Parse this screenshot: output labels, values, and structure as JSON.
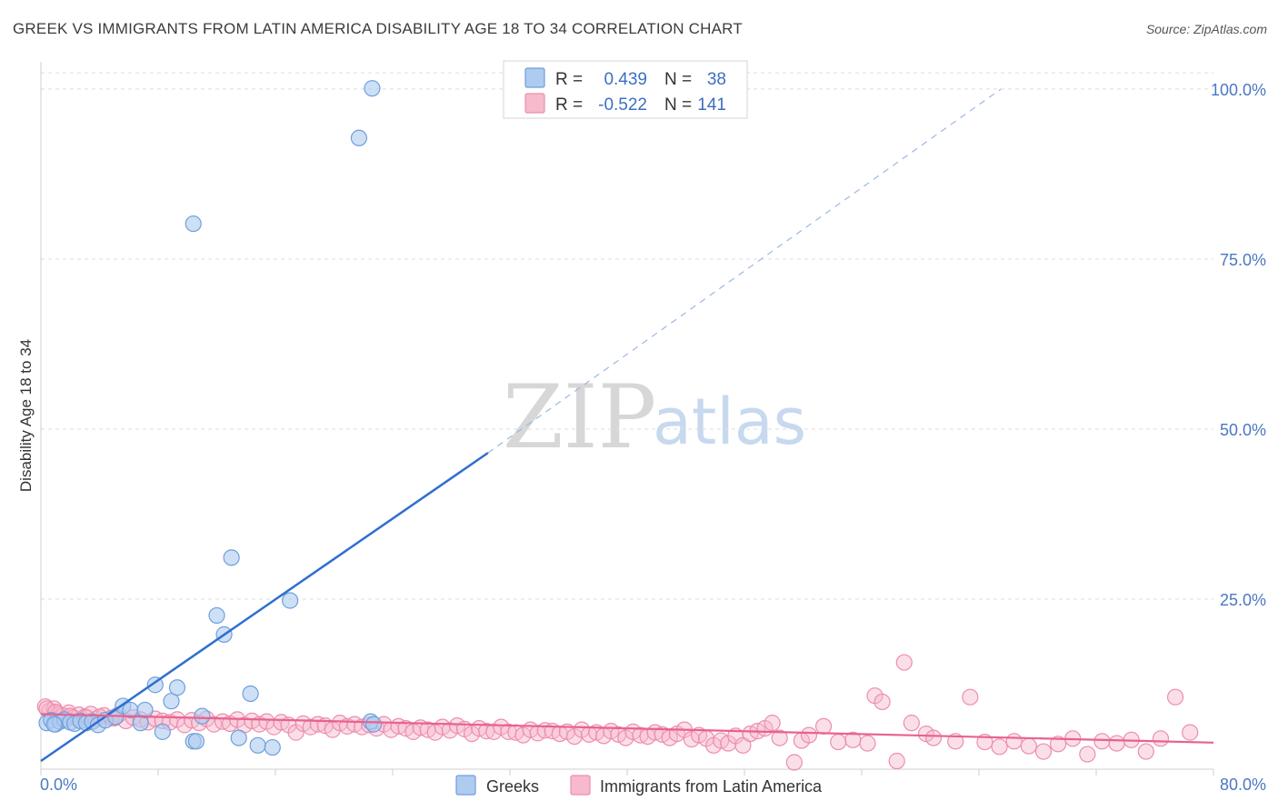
{
  "title": "GREEK VS IMMIGRANTS FROM LATIN AMERICA DISABILITY AGE 18 TO 34 CORRELATION CHART",
  "source": "Source: ZipAtlas.com",
  "watermark": {
    "zip": "ZIP",
    "atlas": "atlas"
  },
  "legend": {
    "r_label": "R =",
    "n_label": "N =",
    "greeks": {
      "r": "0.439",
      "n": "38"
    },
    "latin": {
      "r": "-0.522",
      "n": "141"
    }
  },
  "bottom_legend": {
    "greeks": "Greeks",
    "latin": "Immigrants from Latin America"
  },
  "colors": {
    "greek_fill": "#aecbf0",
    "greek_stroke": "#6f9fdc",
    "greek_line": "#2f6fd0",
    "latin_fill": "#f7b9cc",
    "latin_stroke": "#ec8eae",
    "latin_line": "#e8628e",
    "grid": "#dcdcdc",
    "axis_text": "#4a78c2"
  },
  "chart_data": {
    "type": "scatter",
    "title": "GREEK VS IMMIGRANTS FROM LATIN AMERICA DISABILITY AGE 18 TO 34 CORRELATION CHART",
    "xlabel": "",
    "ylabel": "Disability Age 18 to 34",
    "xlim": [
      0,
      80
    ],
    "ylim": [
      0,
      104
    ],
    "x_tick_labels": [
      "0.0%",
      "80.0%"
    ],
    "y_ticks": [
      25,
      50,
      75,
      100
    ],
    "y_tick_labels": [
      "25.0%",
      "50.0%",
      "75.0%",
      "100.0%"
    ],
    "grid": true,
    "series": [
      {
        "name": "Greeks",
        "r": 0.439,
        "n": 38,
        "trend": {
          "x0": 0,
          "y0": 1.2,
          "x1": 30.5,
          "y1": 46.5,
          "dash_to_x": 65.5,
          "dash_to_y": 100
        },
        "points": [
          [
            0.4,
            6.8
          ],
          [
            0.7,
            7.2
          ],
          [
            1.0,
            6.6
          ],
          [
            1.3,
            7.0
          ],
          [
            1.6,
            7.3
          ],
          [
            2.0,
            6.9
          ],
          [
            2.3,
            6.7
          ],
          [
            2.7,
            7.1
          ],
          [
            3.1,
            6.8
          ],
          [
            3.5,
            7.0
          ],
          [
            3.9,
            6.5
          ],
          [
            4.4,
            7.2
          ],
          [
            5.1,
            7.7
          ],
          [
            5.6,
            9.3
          ],
          [
            6.1,
            8.7
          ],
          [
            6.8,
            6.8
          ],
          [
            7.1,
            8.7
          ],
          [
            7.8,
            12.4
          ],
          [
            8.3,
            5.5
          ],
          [
            8.9,
            10.0
          ],
          [
            9.3,
            12.0
          ],
          [
            10.4,
            4.1
          ],
          [
            10.6,
            4.1
          ],
          [
            11.0,
            7.8
          ],
          [
            12.0,
            22.6
          ],
          [
            12.5,
            19.8
          ],
          [
            13.0,
            31.1
          ],
          [
            13.5,
            4.6
          ],
          [
            14.3,
            11.1
          ],
          [
            14.8,
            3.5
          ],
          [
            15.8,
            3.2
          ],
          [
            17.0,
            24.8
          ],
          [
            22.5,
            7.0
          ],
          [
            22.7,
            6.6
          ],
          [
            21.7,
            92.8
          ],
          [
            22.6,
            100.1
          ],
          [
            10.4,
            80.2
          ],
          [
            0.9,
            6.6
          ]
        ]
      },
      {
        "name": "Immigrants from Latin America",
        "r": -0.522,
        "n": 141,
        "trend": {
          "x0": 0,
          "y0": 8.1,
          "x1": 80,
          "y1": 3.9
        },
        "points": [
          [
            0.3,
            9.2
          ],
          [
            0.6,
            8.6
          ],
          [
            0.9,
            8.9
          ],
          [
            1.2,
            8.1
          ],
          [
            1.5,
            7.9
          ],
          [
            1.9,
            8.3
          ],
          [
            2.2,
            7.6
          ],
          [
            2.6,
            8.0
          ],
          [
            3.0,
            7.7
          ],
          [
            3.4,
            8.1
          ],
          [
            3.8,
            7.4
          ],
          [
            4.3,
            7.9
          ],
          [
            4.8,
            7.5
          ],
          [
            5.3,
            8.0
          ],
          [
            5.8,
            7.1
          ],
          [
            6.3,
            7.6
          ],
          [
            6.8,
            7.3
          ],
          [
            7.3,
            6.9
          ],
          [
            7.8,
            7.4
          ],
          [
            8.3,
            7.1
          ],
          [
            8.8,
            6.9
          ],
          [
            9.3,
            7.3
          ],
          [
            9.8,
            6.5
          ],
          [
            10.3,
            7.2
          ],
          [
            10.8,
            6.8
          ],
          [
            11.3,
            7.4
          ],
          [
            11.8,
            6.6
          ],
          [
            12.4,
            7.0
          ],
          [
            12.9,
            6.7
          ],
          [
            13.4,
            7.3
          ],
          [
            13.9,
            6.5
          ],
          [
            14.4,
            7.1
          ],
          [
            14.9,
            6.6
          ],
          [
            15.4,
            7.0
          ],
          [
            15.9,
            6.2
          ],
          [
            16.4,
            6.9
          ],
          [
            16.9,
            6.5
          ],
          [
            17.4,
            5.4
          ],
          [
            17.9,
            6.7
          ],
          [
            18.4,
            6.2
          ],
          [
            18.9,
            6.6
          ],
          [
            19.4,
            6.4
          ],
          [
            19.9,
            5.8
          ],
          [
            20.4,
            6.8
          ],
          [
            20.9,
            6.3
          ],
          [
            21.4,
            6.6
          ],
          [
            21.9,
            6.2
          ],
          [
            22.4,
            6.5
          ],
          [
            22.9,
            6.0
          ],
          [
            23.4,
            6.6
          ],
          [
            23.9,
            5.8
          ],
          [
            24.4,
            6.3
          ],
          [
            24.9,
            6.0
          ],
          [
            25.4,
            5.5
          ],
          [
            25.9,
            6.1
          ],
          [
            26.4,
            5.8
          ],
          [
            26.9,
            5.4
          ],
          [
            27.4,
            6.2
          ],
          [
            27.9,
            5.7
          ],
          [
            28.4,
            6.4
          ],
          [
            28.9,
            5.9
          ],
          [
            29.4,
            5.2
          ],
          [
            29.9,
            6.0
          ],
          [
            30.4,
            5.6
          ],
          [
            30.9,
            5.5
          ],
          [
            31.4,
            6.2
          ],
          [
            31.9,
            5.5
          ],
          [
            32.4,
            5.4
          ],
          [
            32.9,
            5.0
          ],
          [
            33.4,
            5.8
          ],
          [
            33.9,
            5.3
          ],
          [
            34.4,
            5.7
          ],
          [
            34.9,
            5.6
          ],
          [
            35.4,
            5.2
          ],
          [
            35.9,
            5.5
          ],
          [
            36.4,
            4.8
          ],
          [
            36.9,
            5.8
          ],
          [
            37.4,
            5.1
          ],
          [
            37.9,
            5.4
          ],
          [
            38.4,
            4.9
          ],
          [
            38.9,
            5.6
          ],
          [
            39.4,
            5.1
          ],
          [
            39.9,
            4.6
          ],
          [
            40.4,
            5.5
          ],
          [
            40.9,
            5.0
          ],
          [
            41.4,
            4.8
          ],
          [
            41.9,
            5.4
          ],
          [
            42.4,
            5.1
          ],
          [
            42.9,
            4.6
          ],
          [
            43.4,
            5.2
          ],
          [
            43.9,
            5.8
          ],
          [
            44.4,
            4.4
          ],
          [
            44.9,
            5.0
          ],
          [
            45.4,
            4.5
          ],
          [
            45.9,
            3.5
          ],
          [
            46.4,
            4.2
          ],
          [
            46.9,
            3.8
          ],
          [
            47.4,
            4.9
          ],
          [
            47.9,
            3.5
          ],
          [
            48.4,
            5.2
          ],
          [
            48.9,
            5.6
          ],
          [
            49.4,
            6.0
          ],
          [
            49.9,
            6.8
          ],
          [
            50.4,
            4.6
          ],
          [
            51.4,
            1.0
          ],
          [
            51.9,
            4.2
          ],
          [
            52.4,
            5.0
          ],
          [
            53.4,
            6.3
          ],
          [
            54.4,
            4.0
          ],
          [
            55.4,
            4.3
          ],
          [
            56.4,
            3.8
          ],
          [
            56.9,
            10.8
          ],
          [
            57.4,
            9.9
          ],
          [
            58.4,
            1.2
          ],
          [
            58.9,
            15.7
          ],
          [
            59.4,
            6.8
          ],
          [
            60.4,
            5.2
          ],
          [
            60.9,
            4.6
          ],
          [
            62.4,
            4.1
          ],
          [
            63.4,
            10.6
          ],
          [
            64.4,
            4.0
          ],
          [
            65.4,
            3.3
          ],
          [
            66.4,
            4.1
          ],
          [
            67.4,
            3.4
          ],
          [
            68.4,
            2.6
          ],
          [
            69.4,
            3.7
          ],
          [
            70.4,
            4.5
          ],
          [
            71.4,
            2.2
          ],
          [
            72.4,
            4.1
          ],
          [
            73.4,
            3.8
          ],
          [
            74.4,
            4.3
          ],
          [
            75.4,
            2.6
          ],
          [
            76.4,
            4.5
          ],
          [
            77.4,
            10.6
          ],
          [
            78.4,
            5.4
          ],
          [
            0.4,
            8.9
          ],
          [
            1.0,
            8.4
          ],
          [
            2.0,
            7.8
          ],
          [
            3.1,
            7.6
          ],
          [
            4.0,
            7.7
          ],
          [
            5.0,
            7.5
          ]
        ]
      }
    ]
  }
}
